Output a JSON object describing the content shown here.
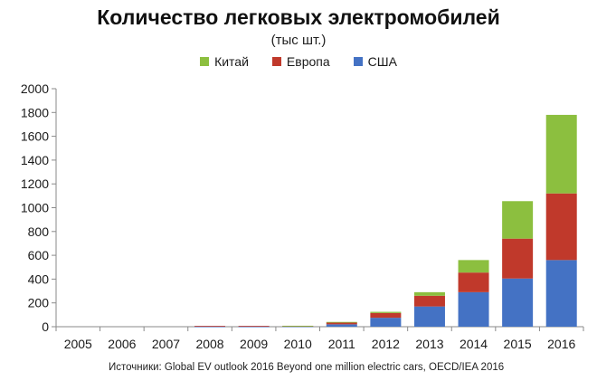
{
  "chart_data": {
    "type": "bar",
    "stacked": true,
    "title": "Количество легковых электромобилей",
    "subtitle": "(тыс шт.)",
    "categories": [
      "2005",
      "2006",
      "2007",
      "2008",
      "2009",
      "2010",
      "2011",
      "2012",
      "2013",
      "2014",
      "2015",
      "2016"
    ],
    "series": [
      {
        "name": "США",
        "color": "#4472c4",
        "values": [
          0,
          0,
          0,
          2,
          2,
          3,
          20,
          75,
          170,
          290,
          405,
          560
        ]
      },
      {
        "name": "Европа",
        "color": "#c0392b",
        "values": [
          0,
          0,
          0,
          5,
          5,
          4,
          15,
          40,
          90,
          165,
          335,
          560
        ]
      },
      {
        "name": "Китай",
        "color": "#8cbf3f",
        "values": [
          0,
          0,
          0,
          0,
          0,
          1,
          5,
          10,
          30,
          105,
          315,
          660
        ]
      }
    ],
    "legend_order": [
      "Китай",
      "Европа",
      "США"
    ],
    "legend_position": "top",
    "ylim": [
      0,
      2000
    ],
    "yticks": [
      "0",
      "200",
      "400",
      "600",
      "800",
      "1000",
      "1200",
      "1400",
      "1600",
      "1800",
      "2000"
    ],
    "grid": false,
    "source": "Источники: Global EV outlook 2016 Beyond one million electric cars, OECD/IEA 2016"
  }
}
